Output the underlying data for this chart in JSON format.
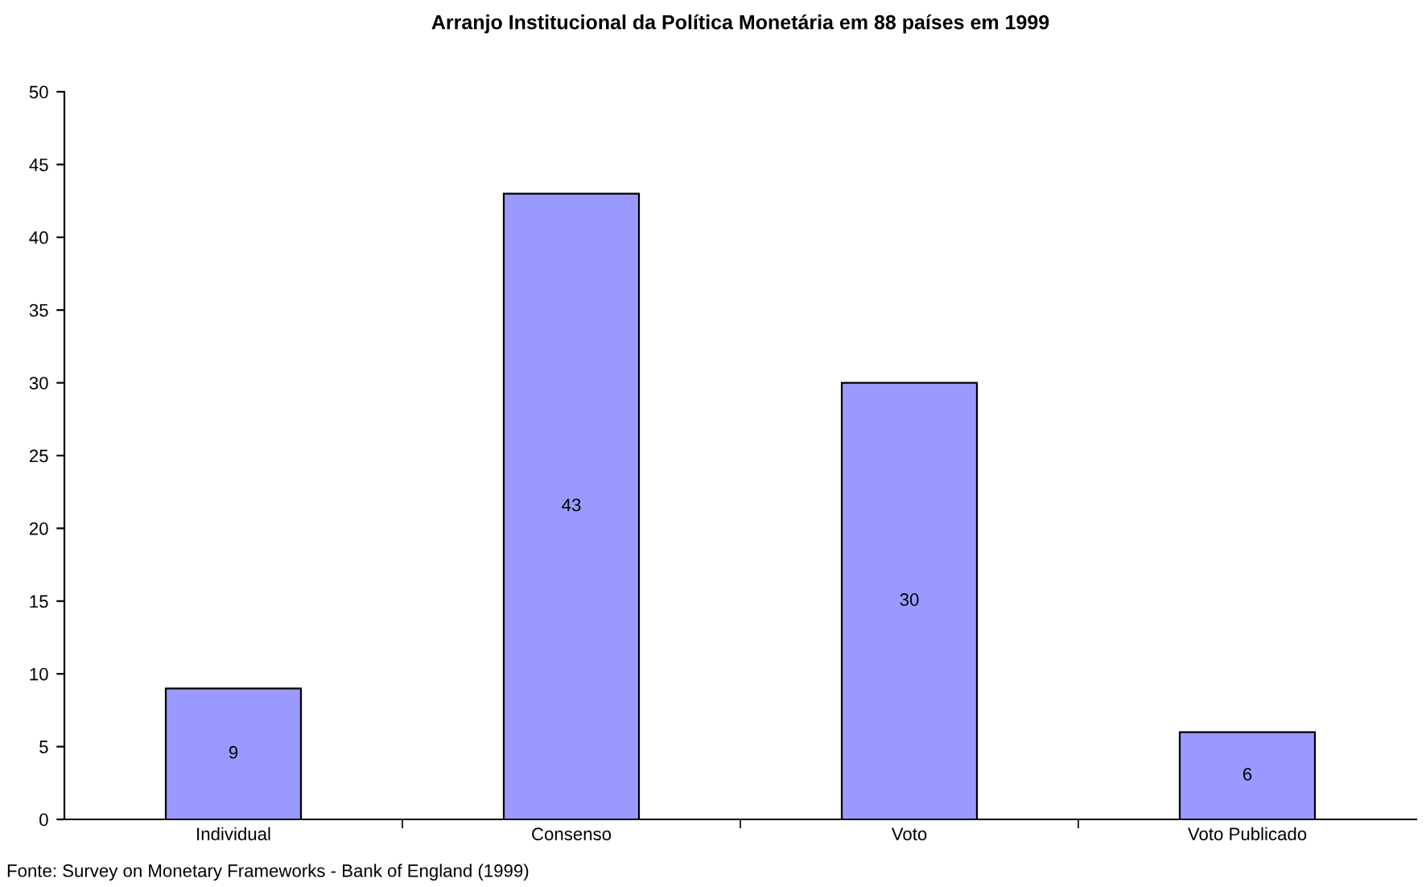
{
  "chart_data": {
    "type": "bar",
    "title": "Arranjo Institucional da Política Monetária em 88 países em 1999",
    "categories": [
      "Individual",
      "Consenso",
      "Voto",
      "Voto Publicado"
    ],
    "values": [
      9,
      43,
      30,
      6
    ],
    "color": "#9999ff",
    "ylim": [
      0,
      50
    ],
    "yticks": [
      0,
      5,
      10,
      15,
      20,
      25,
      30,
      35,
      40,
      45,
      50
    ],
    "data_labels": true,
    "grid": false,
    "legend": false,
    "annotations": [
      "Fonte: Survey on Monetary Frameworks - Bank of England (1999)"
    ]
  }
}
